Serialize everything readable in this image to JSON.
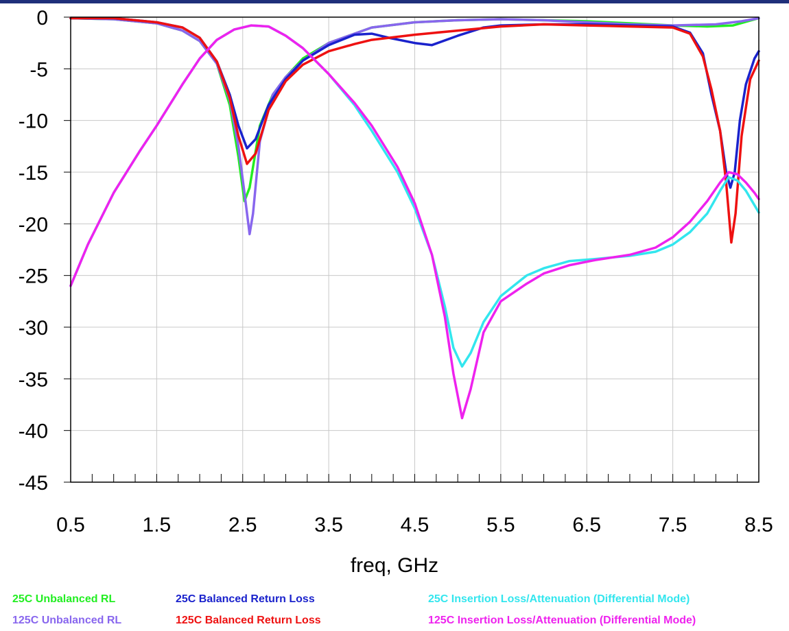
{
  "chart_data": {
    "type": "line",
    "xlabel": "freq, GHz",
    "ylabel": "",
    "xlim": [
      0.5,
      8.5
    ],
    "ylim": [
      -45,
      0
    ],
    "xticks": [
      "0.5",
      "1.5",
      "2.5",
      "3.5",
      "4.5",
      "5.5",
      "6.5",
      "7.5",
      "8.5"
    ],
    "yticks": [
      "0",
      "-5",
      "-10",
      "-15",
      "-20",
      "-25",
      "-30",
      "-35",
      "-40",
      "-45"
    ],
    "grid": true,
    "legend_position": "bottom",
    "series": [
      {
        "name": "25C Unbalanced RL",
        "color": "#22ee22",
        "points": [
          [
            0.5,
            -0.1
          ],
          [
            1.0,
            -0.2
          ],
          [
            1.5,
            -0.6
          ],
          [
            1.8,
            -1.3
          ],
          [
            2.0,
            -2.3
          ],
          [
            2.2,
            -4.5
          ],
          [
            2.35,
            -8.5
          ],
          [
            2.45,
            -13.5
          ],
          [
            2.52,
            -17.8
          ],
          [
            2.58,
            -16.5
          ],
          [
            2.7,
            -10.5
          ],
          [
            2.85,
            -7.5
          ],
          [
            3.0,
            -5.8
          ],
          [
            3.2,
            -4.0
          ],
          [
            3.5,
            -2.5
          ],
          [
            4.0,
            -1.0
          ],
          [
            4.5,
            -0.5
          ],
          [
            5.0,
            -0.3
          ],
          [
            5.5,
            -0.2
          ],
          [
            6.0,
            -0.3
          ],
          [
            6.5,
            -0.4
          ],
          [
            7.0,
            -0.6
          ],
          [
            7.5,
            -0.8
          ],
          [
            7.9,
            -0.9
          ],
          [
            8.2,
            -0.8
          ],
          [
            8.5,
            -0.1
          ]
        ]
      },
      {
        "name": "125C Unbalanced RL",
        "color": "#8866ee",
        "points": [
          [
            0.5,
            -0.1
          ],
          [
            1.0,
            -0.2
          ],
          [
            1.5,
            -0.6
          ],
          [
            1.8,
            -1.3
          ],
          [
            2.0,
            -2.3
          ],
          [
            2.2,
            -4.5
          ],
          [
            2.35,
            -8.0
          ],
          [
            2.45,
            -12.5
          ],
          [
            2.52,
            -17.0
          ],
          [
            2.58,
            -21.0
          ],
          [
            2.62,
            -19.0
          ],
          [
            2.7,
            -12.0
          ],
          [
            2.85,
            -7.5
          ],
          [
            3.0,
            -5.8
          ],
          [
            3.2,
            -4.2
          ],
          [
            3.5,
            -2.5
          ],
          [
            4.0,
            -1.0
          ],
          [
            4.5,
            -0.5
          ],
          [
            5.0,
            -0.3
          ],
          [
            5.5,
            -0.2
          ],
          [
            6.0,
            -0.3
          ],
          [
            6.5,
            -0.5
          ],
          [
            7.0,
            -0.7
          ],
          [
            7.5,
            -0.8
          ],
          [
            8.0,
            -0.7
          ],
          [
            8.3,
            -0.4
          ],
          [
            8.5,
            -0.1
          ]
        ]
      },
      {
        "name": "25C Balanced Return Loss",
        "color": "#1a22cc",
        "points": [
          [
            0.5,
            -0.1
          ],
          [
            1.0,
            -0.1
          ],
          [
            1.5,
            -0.5
          ],
          [
            1.8,
            -1.0
          ],
          [
            2.0,
            -2.0
          ],
          [
            2.2,
            -4.3
          ],
          [
            2.35,
            -7.5
          ],
          [
            2.45,
            -10.5
          ],
          [
            2.55,
            -12.7
          ],
          [
            2.65,
            -11.8
          ],
          [
            2.8,
            -8.5
          ],
          [
            3.0,
            -6.0
          ],
          [
            3.2,
            -4.2
          ],
          [
            3.5,
            -2.7
          ],
          [
            3.8,
            -1.7
          ],
          [
            4.0,
            -1.6
          ],
          [
            4.2,
            -2.0
          ],
          [
            4.5,
            -2.5
          ],
          [
            4.7,
            -2.7
          ],
          [
            5.0,
            -1.8
          ],
          [
            5.3,
            -1.0
          ],
          [
            5.5,
            -0.8
          ],
          [
            6.0,
            -0.7
          ],
          [
            6.5,
            -0.7
          ],
          [
            7.0,
            -0.8
          ],
          [
            7.5,
            -0.9
          ],
          [
            7.7,
            -1.5
          ],
          [
            7.85,
            -3.5
          ],
          [
            7.95,
            -7.5
          ],
          [
            8.05,
            -11.0
          ],
          [
            8.12,
            -15.0
          ],
          [
            8.17,
            -16.5
          ],
          [
            8.22,
            -15.0
          ],
          [
            8.28,
            -10.0
          ],
          [
            8.35,
            -6.5
          ],
          [
            8.45,
            -4.0
          ],
          [
            8.5,
            -3.3
          ]
        ]
      },
      {
        "name": "125C Balanced Return Loss",
        "color": "#ee1111",
        "points": [
          [
            0.5,
            -0.1
          ],
          [
            1.0,
            -0.1
          ],
          [
            1.5,
            -0.5
          ],
          [
            1.8,
            -1.0
          ],
          [
            2.0,
            -2.0
          ],
          [
            2.2,
            -4.3
          ],
          [
            2.35,
            -7.8
          ],
          [
            2.45,
            -11.5
          ],
          [
            2.55,
            -14.2
          ],
          [
            2.65,
            -13.2
          ],
          [
            2.8,
            -9.0
          ],
          [
            3.0,
            -6.2
          ],
          [
            3.2,
            -4.6
          ],
          [
            3.5,
            -3.3
          ],
          [
            3.8,
            -2.6
          ],
          [
            4.0,
            -2.2
          ],
          [
            4.2,
            -2.0
          ],
          [
            4.5,
            -1.7
          ],
          [
            5.0,
            -1.3
          ],
          [
            5.5,
            -0.9
          ],
          [
            6.0,
            -0.7
          ],
          [
            6.5,
            -0.8
          ],
          [
            7.0,
            -0.9
          ],
          [
            7.5,
            -1.0
          ],
          [
            7.7,
            -1.6
          ],
          [
            7.85,
            -3.8
          ],
          [
            7.95,
            -7.0
          ],
          [
            8.05,
            -11.0
          ],
          [
            8.12,
            -16.0
          ],
          [
            8.18,
            -21.8
          ],
          [
            8.23,
            -19.0
          ],
          [
            8.3,
            -11.5
          ],
          [
            8.4,
            -6.0
          ],
          [
            8.5,
            -4.2
          ]
        ]
      },
      {
        "name": "25C Insertion Loss/Attenuation (Differential Mode)",
        "color": "#33e6ee",
        "points": [
          [
            0.5,
            -26.0
          ],
          [
            0.7,
            -22.0
          ],
          [
            1.0,
            -17.0
          ],
          [
            1.3,
            -13.0
          ],
          [
            1.5,
            -10.5
          ],
          [
            1.8,
            -6.5
          ],
          [
            2.0,
            -4.0
          ],
          [
            2.2,
            -2.2
          ],
          [
            2.4,
            -1.2
          ],
          [
            2.6,
            -0.8
          ],
          [
            2.8,
            -0.9
          ],
          [
            3.0,
            -1.8
          ],
          [
            3.2,
            -3.0
          ],
          [
            3.5,
            -5.5
          ],
          [
            3.8,
            -8.5
          ],
          [
            4.0,
            -11.0
          ],
          [
            4.3,
            -15.0
          ],
          [
            4.5,
            -18.5
          ],
          [
            4.7,
            -23.0
          ],
          [
            4.85,
            -28.0
          ],
          [
            4.95,
            -32.0
          ],
          [
            5.05,
            -33.8
          ],
          [
            5.15,
            -32.5
          ],
          [
            5.3,
            -29.5
          ],
          [
            5.5,
            -27.0
          ],
          [
            5.8,
            -25.0
          ],
          [
            6.0,
            -24.3
          ],
          [
            6.3,
            -23.6
          ],
          [
            6.6,
            -23.4
          ],
          [
            7.0,
            -23.1
          ],
          [
            7.3,
            -22.7
          ],
          [
            7.5,
            -22.0
          ],
          [
            7.7,
            -20.8
          ],
          [
            7.9,
            -19.0
          ],
          [
            8.05,
            -16.8
          ],
          [
            8.15,
            -15.5
          ],
          [
            8.25,
            -15.8
          ],
          [
            8.35,
            -16.8
          ],
          [
            8.45,
            -18.2
          ],
          [
            8.5,
            -18.9
          ]
        ]
      },
      {
        "name": "125C Insertion Loss/Attenuation (Differential Mode)",
        "color": "#ee22ee",
        "points": [
          [
            0.5,
            -26.0
          ],
          [
            0.7,
            -22.0
          ],
          [
            1.0,
            -17.0
          ],
          [
            1.3,
            -13.0
          ],
          [
            1.5,
            -10.5
          ],
          [
            1.8,
            -6.5
          ],
          [
            2.0,
            -4.0
          ],
          [
            2.2,
            -2.2
          ],
          [
            2.4,
            -1.2
          ],
          [
            2.6,
            -0.8
          ],
          [
            2.8,
            -0.9
          ],
          [
            3.0,
            -1.8
          ],
          [
            3.2,
            -3.0
          ],
          [
            3.5,
            -5.5
          ],
          [
            3.8,
            -8.3
          ],
          [
            4.0,
            -10.5
          ],
          [
            4.3,
            -14.5
          ],
          [
            4.5,
            -18.0
          ],
          [
            4.7,
            -23.0
          ],
          [
            4.85,
            -29.0
          ],
          [
            4.95,
            -34.5
          ],
          [
            5.05,
            -38.8
          ],
          [
            5.15,
            -36.0
          ],
          [
            5.3,
            -30.5
          ],
          [
            5.5,
            -27.5
          ],
          [
            5.8,
            -25.8
          ],
          [
            6.0,
            -24.8
          ],
          [
            6.3,
            -24.0
          ],
          [
            6.6,
            -23.5
          ],
          [
            7.0,
            -23.0
          ],
          [
            7.3,
            -22.3
          ],
          [
            7.5,
            -21.3
          ],
          [
            7.7,
            -19.8
          ],
          [
            7.9,
            -17.8
          ],
          [
            8.05,
            -16.0
          ],
          [
            8.15,
            -15.0
          ],
          [
            8.25,
            -15.2
          ],
          [
            8.35,
            -16.0
          ],
          [
            8.45,
            -17.0
          ],
          [
            8.5,
            -17.6
          ]
        ]
      }
    ]
  }
}
